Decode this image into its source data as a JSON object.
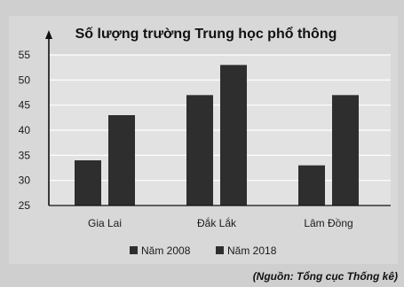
{
  "chart_data": {
    "type": "bar",
    "title": "Số lượng trường Trung học phổ thông",
    "categories": [
      "Gia Lai",
      "Đắk Lắk",
      "Lâm Đồng"
    ],
    "series": [
      {
        "name": "Năm 2008",
        "values": [
          34,
          47,
          33
        ]
      },
      {
        "name": "Năm 2018",
        "values": [
          43,
          53,
          47
        ]
      }
    ],
    "yticks": [
      25,
      30,
      35,
      40,
      45,
      50,
      55
    ],
    "ylim": [
      25,
      55
    ],
    "grid": true,
    "legend": "bottom",
    "xlabel": "",
    "ylabel": ""
  },
  "source_note": "(Nguồn: Tổng cục Thống kê)",
  "colors": {
    "background": "#cfcfcf",
    "plot_area": "#e2e2e2",
    "grid": "#ffffff",
    "bar": "#2e2e2e",
    "axis": "#111111"
  }
}
